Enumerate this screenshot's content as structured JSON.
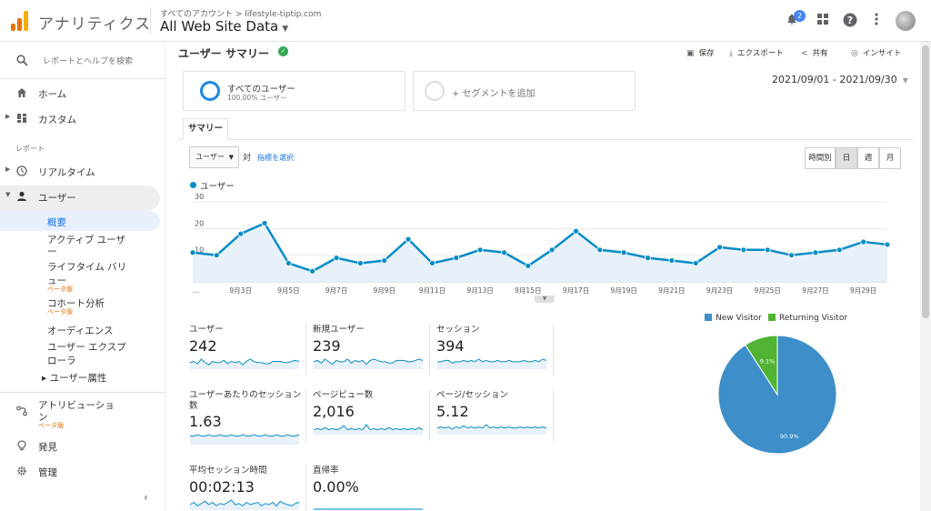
{
  "app": {
    "name": "アナリティクス",
    "breadcrumb": "すべてのアカウント > lifestyle-tiptip.com",
    "account_view": "All Web Site Data",
    "notification_count": "2",
    "logo_colors": [
      "#f9ab00",
      "#e37400",
      "#e37400"
    ]
  },
  "sidebar": {
    "search_label": "レポートとヘルプを検索",
    "home": "ホーム",
    "custom": "カスタム",
    "reports_header": "レポート",
    "realtime": "リアルタイム",
    "user": "ユーザー",
    "sub_items": [
      {
        "label": "概要"
      },
      {
        "label": "アクティブ ユーザ",
        "label2": "ー"
      },
      {
        "label": "ライフタイム バリ",
        "label2": "ュー",
        "beta": "ベータ版"
      },
      {
        "label": "コホート分析",
        "beta": "ベータ版"
      },
      {
        "label": "オーディエンス"
      },
      {
        "label": "ユーザー エクスプ",
        "label2": "ローラ"
      },
      {
        "label": "▸ ユーザー属性"
      }
    ],
    "attribution": "アトリビューショ",
    "attribution2": "ン",
    "attribution_beta": "ベータ版",
    "discover": "発見",
    "admin": "管理"
  },
  "header": {
    "title": "ユーザー サマリー",
    "actions": {
      "save": "保存",
      "export": "エクスポート",
      "share": "共有",
      "insights": "インサイト"
    }
  },
  "segments": {
    "all_users": "すべてのユーザー",
    "all_users_pct": "100.00% ユーザー",
    "add_segment": "+ セグメントを追加"
  },
  "date_range": "2021/09/01 - 2021/09/30",
  "tab": "サマリー",
  "controls": {
    "metric": "ユーザー",
    "vs": "対",
    "pick_metric": "指標を選択",
    "granularity": [
      "時間別",
      "日",
      "週",
      "月"
    ],
    "granularity_selected": 1
  },
  "chart_data": [
    {
      "type": "line",
      "series": [
        {
          "name": "ユーザー",
          "color": "#058dc7",
          "values": [
            11,
            10,
            18,
            22,
            7,
            4,
            9,
            7,
            8,
            16,
            7,
            9,
            12,
            11,
            6,
            12,
            19,
            12,
            11,
            9,
            8,
            7,
            13,
            12,
            12,
            10,
            11,
            12,
            15,
            14
          ]
        }
      ],
      "x_tick_labels": [
        "…",
        "9月3日",
        "9月5日",
        "9月7日",
        "9月9日",
        "9月11日",
        "9月13日",
        "9月15日",
        "9月17日",
        "9月19日",
        "9月21日",
        "9月23日",
        "9月25日",
        "9月27日",
        "9月29日"
      ],
      "y_tick_labels": [
        "10",
        "20",
        "30"
      ],
      "ylim": [
        0,
        30
      ],
      "grid": true
    },
    {
      "type": "pie",
      "categories": [
        "New Visitor",
        "Returning Visitor"
      ],
      "values": [
        90.9,
        9.1
      ],
      "slice_labels": [
        "90.9%",
        "9.1%"
      ],
      "colors": [
        "#3d8ec9",
        "#50b432"
      ],
      "legend": "top"
    }
  ],
  "metrics": [
    {
      "label": "ユーザー",
      "value": "242",
      "spark": [
        5,
        6,
        4,
        8,
        5,
        3,
        6,
        5,
        5,
        7,
        4,
        6,
        5,
        6,
        3,
        6,
        8,
        6,
        5,
        5,
        4,
        4,
        6,
        6,
        6,
        5,
        5,
        6,
        7,
        6
      ]
    },
    {
      "label": "新規ユーザー",
      "value": "239",
      "spark": [
        5,
        6,
        4,
        7,
        5,
        3,
        6,
        5,
        5,
        7,
        4,
        6,
        5,
        6,
        3,
        6,
        7,
        6,
        5,
        5,
        4,
        4,
        6,
        6,
        6,
        5,
        5,
        6,
        7,
        6
      ]
    },
    {
      "label": "セッション",
      "value": "394",
      "spark": [
        5,
        5,
        6,
        6,
        4,
        5,
        5,
        6,
        5,
        6,
        5,
        7,
        5,
        6,
        5,
        5,
        6,
        5,
        5,
        6,
        5,
        5,
        5,
        6,
        5,
        5,
        6,
        5,
        7,
        6
      ]
    },
    {
      "label": "ユーザーあたりのセッション数",
      "value": "1.63",
      "spark": [
        5,
        5,
        6,
        5,
        5,
        6,
        5,
        5,
        6,
        5,
        5,
        6,
        5,
        5,
        6,
        5,
        5,
        6,
        5,
        5,
        6,
        5,
        5,
        6,
        5,
        5,
        6,
        5,
        5,
        6
      ]
    },
    {
      "label": "ページビュー数",
      "value": "2,016",
      "spark": [
        4,
        5,
        4,
        6,
        4,
        5,
        4,
        5,
        8,
        4,
        5,
        4,
        5,
        4,
        9,
        4,
        5,
        4,
        5,
        4,
        6,
        4,
        5,
        4,
        5,
        4,
        5,
        4,
        6,
        4
      ]
    },
    {
      "label": "ページ/セッション",
      "value": "5.12",
      "spark": [
        5,
        6,
        5,
        6,
        4,
        6,
        5,
        7,
        5,
        6,
        5,
        6,
        5,
        8,
        5,
        6,
        5,
        6,
        5,
        6,
        5,
        5,
        6,
        5,
        6,
        5,
        6,
        5,
        6,
        5
      ]
    },
    {
      "label": "平均セッション時間",
      "value": "00:02:13",
      "spark": [
        4,
        6,
        3,
        5,
        7,
        4,
        6,
        3,
        5,
        4,
        6,
        8,
        4,
        5,
        3,
        6,
        4,
        5,
        6,
        3,
        5,
        4,
        6,
        3,
        7,
        5,
        4,
        3,
        5,
        6
      ]
    },
    {
      "label": "直帰率",
      "value": "0.00%",
      "spark": [
        0,
        0,
        0,
        0,
        0,
        0,
        0,
        0,
        0,
        0,
        0,
        0,
        0,
        0,
        0,
        0,
        0,
        0,
        0,
        0,
        0,
        0,
        0,
        0,
        0,
        0,
        0,
        0,
        0,
        0
      ]
    }
  ]
}
